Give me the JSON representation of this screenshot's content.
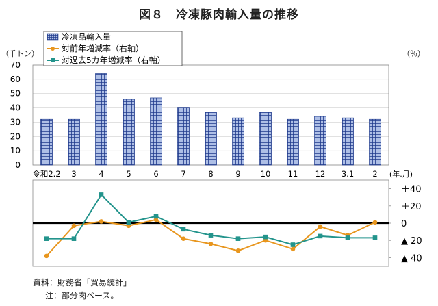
{
  "title": "図８　冷凍豚肉輸入量の推移",
  "units": {
    "left": "（千トン）",
    "right": "（％）",
    "period": "(年.月)"
  },
  "legend": {
    "bar": "冷凍品輸入量",
    "line1": "対前年増減率（右軸）",
    "line2": "対過去5カ年増減率（右軸）"
  },
  "source": {
    "line1": "資料：財務省「貿易統計」",
    "line2": "注：部分肉ベース。"
  },
  "colors": {
    "bar_fill": "#aebfe6",
    "bar_grid": "#1f3a8c",
    "line1": "#e8961e",
    "line2": "#23948c",
    "zero": "#000000"
  },
  "chart_data": [
    {
      "type": "bar",
      "categories": [
        "令和2.2",
        "3",
        "4",
        "5",
        "6",
        "7",
        "8",
        "9",
        "10",
        "11",
        "12",
        "3.1",
        "2"
      ],
      "series": [
        {
          "name": "冷凍品輸入量",
          "values": [
            32,
            32,
            64,
            46,
            47,
            40,
            37,
            33,
            37,
            32,
            34,
            33,
            32
          ]
        }
      ],
      "ylim": [
        0,
        70
      ],
      "yticks": [
        "0",
        "10",
        "20",
        "30",
        "40",
        "50",
        "60",
        "70"
      ],
      "ylabel": "（千トン）"
    },
    {
      "type": "line",
      "categories": [
        "令和2.2",
        "3",
        "4",
        "5",
        "6",
        "7",
        "8",
        "9",
        "10",
        "11",
        "12",
        "3.1",
        "2"
      ],
      "series": [
        {
          "name": "対前年増減率（右軸）",
          "values": [
            -38,
            -3,
            2,
            -3,
            4,
            -18,
            -24,
            -32,
            -20,
            -30,
            -4,
            -14,
            1
          ]
        },
        {
          "name": "対過去5カ年増減率（右軸）",
          "values": [
            -18,
            -18,
            33,
            1,
            8,
            -7,
            -14,
            -18,
            -16,
            -25,
            -15,
            -17,
            -17
          ]
        }
      ],
      "ylim": [
        -50,
        50
      ],
      "ytick_labels": [
        {
          "value": 40,
          "label": "＋40"
        },
        {
          "value": 20,
          "label": "＋20"
        },
        {
          "value": 0,
          "label": "0"
        },
        {
          "value": -20,
          "label": "▲ 20"
        },
        {
          "value": -40,
          "label": "▲ 40"
        }
      ],
      "ylabel": "（％）"
    }
  ]
}
